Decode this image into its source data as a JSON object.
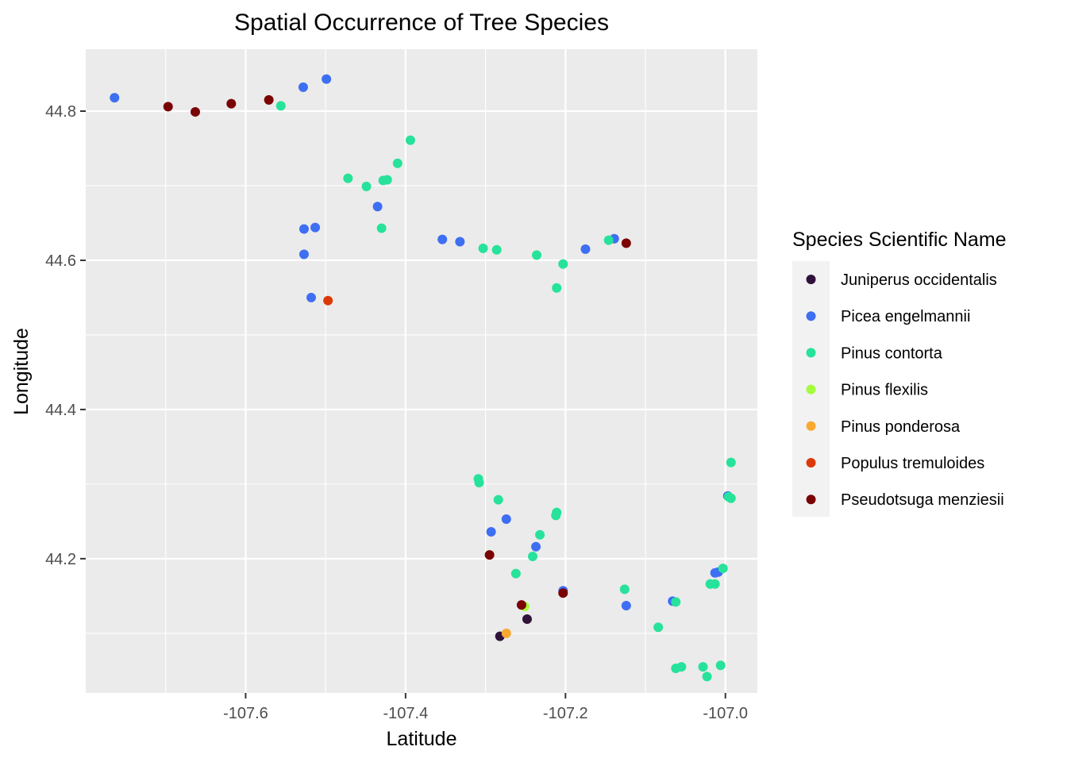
{
  "chart_data": {
    "type": "scatter",
    "title": "Spatial Occurrence of Tree Species",
    "xlabel": "Latitude",
    "ylabel": "Longitude",
    "xlim": [
      -107.8,
      -106.96
    ],
    "ylim": [
      44.02,
      44.883
    ],
    "x_ticks": [
      -107.6,
      -107.4,
      -107.2,
      -107.0
    ],
    "x_tick_labels": [
      "-107.6",
      "-107.4",
      "-107.2",
      "-107.0"
    ],
    "y_ticks": [
      44.2,
      44.4,
      44.6,
      44.8
    ],
    "y_tick_labels": [
      "44.2",
      "44.4",
      "44.6",
      "44.8"
    ],
    "grid": true,
    "legend": {
      "title": "Species Scientific Name",
      "position": "right"
    },
    "series": [
      {
        "name": "Juniperus occidentalis",
        "color": "#30123b",
        "points": [
          [
            -107.282,
            44.096
          ],
          [
            -107.248,
            44.119
          ]
        ]
      },
      {
        "name": "Picea engelmannii",
        "color": "#3e6ff3",
        "points": [
          [
            -107.764,
            44.818
          ],
          [
            -107.528,
            44.832
          ],
          [
            -107.499,
            44.843
          ],
          [
            -107.435,
            44.672
          ],
          [
            -107.527,
            44.642
          ],
          [
            -107.513,
            44.644
          ],
          [
            -107.527,
            44.608
          ],
          [
            -107.518,
            44.55
          ],
          [
            -107.354,
            44.628
          ],
          [
            -107.332,
            44.625
          ],
          [
            -107.175,
            44.615
          ],
          [
            -107.139,
            44.629
          ],
          [
            -106.997,
            44.284
          ],
          [
            -107.293,
            44.236
          ],
          [
            -107.274,
            44.253
          ],
          [
            -107.237,
            44.216
          ],
          [
            -107.203,
            44.157
          ],
          [
            -107.124,
            44.137
          ],
          [
            -107.066,
            44.143
          ],
          [
            -107.013,
            44.181
          ],
          [
            -107.009,
            44.182
          ]
        ]
      },
      {
        "name": "Pinus contorta",
        "color": "#27e29a",
        "points": [
          [
            -107.556,
            44.807
          ],
          [
            -107.394,
            44.761
          ],
          [
            -107.41,
            44.73
          ],
          [
            -107.472,
            44.71
          ],
          [
            -107.449,
            44.699
          ],
          [
            -107.428,
            44.707
          ],
          [
            -107.423,
            44.708
          ],
          [
            -107.43,
            44.643
          ],
          [
            -107.303,
            44.616
          ],
          [
            -107.286,
            44.614
          ],
          [
            -107.236,
            44.607
          ],
          [
            -107.203,
            44.595
          ],
          [
            -107.211,
            44.563
          ],
          [
            -107.146,
            44.627
          ],
          [
            -106.993,
            44.329
          ],
          [
            -107.309,
            44.307
          ],
          [
            -107.308,
            44.302
          ],
          [
            -107.284,
            44.279
          ],
          [
            -107.211,
            44.262
          ],
          [
            -107.212,
            44.258
          ],
          [
            -106.996,
            44.283
          ],
          [
            -106.993,
            44.281
          ],
          [
            -107.232,
            44.232
          ],
          [
            -107.241,
            44.203
          ],
          [
            -107.262,
            44.18
          ],
          [
            -107.126,
            44.159
          ],
          [
            -107.003,
            44.187
          ],
          [
            -107.019,
            44.166
          ],
          [
            -107.013,
            44.166
          ],
          [
            -107.062,
            44.142
          ],
          [
            -107.084,
            44.108
          ],
          [
            -107.062,
            44.053
          ],
          [
            -107.055,
            44.055
          ],
          [
            -107.028,
            44.055
          ],
          [
            -107.023,
            44.042
          ],
          [
            -107.006,
            44.057
          ]
        ]
      },
      {
        "name": "Pinus flexilis",
        "color": "#a4fc3c",
        "points": [
          [
            -107.251,
            44.136
          ]
        ]
      },
      {
        "name": "Pinus ponderosa",
        "color": "#f9a831",
        "points": [
          [
            -107.274,
            44.1
          ]
        ]
      },
      {
        "name": "Populus tremuloides",
        "color": "#db3a07",
        "points": [
          [
            -107.497,
            44.546
          ]
        ]
      },
      {
        "name": "Pseudotsuga menziesii",
        "color": "#7a0403",
        "points": [
          [
            -107.697,
            44.806
          ],
          [
            -107.663,
            44.799
          ],
          [
            -107.618,
            44.81
          ],
          [
            -107.571,
            44.815
          ],
          [
            -107.124,
            44.623
          ],
          [
            -107.295,
            44.205
          ],
          [
            -107.255,
            44.138
          ],
          [
            -107.203,
            44.154
          ]
        ]
      }
    ]
  }
}
